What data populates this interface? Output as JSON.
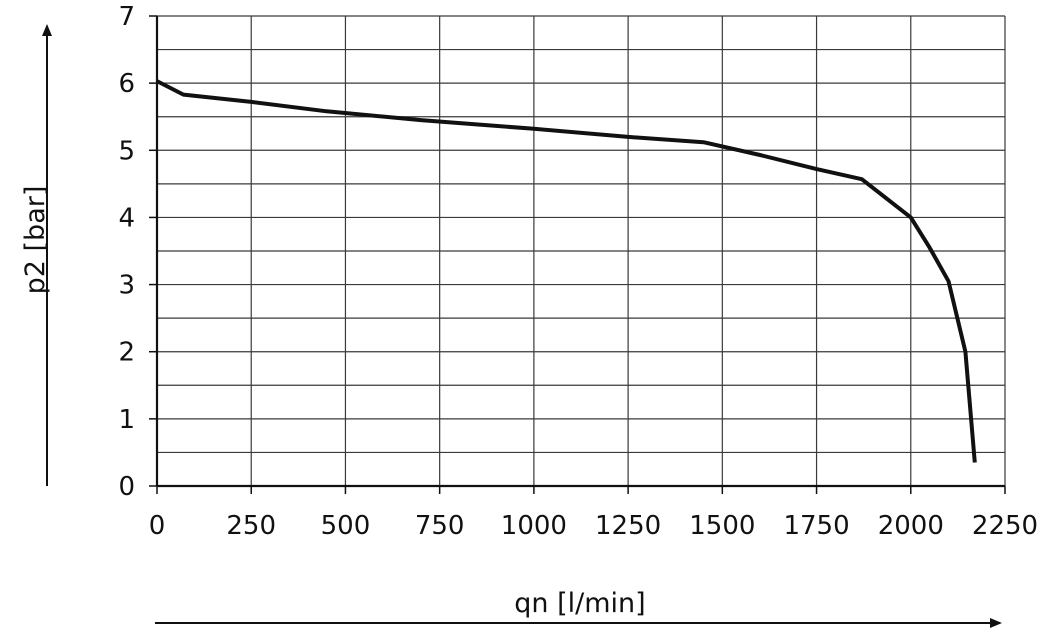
{
  "chart_data": {
    "type": "line",
    "title": "",
    "xlabel": "qn [l/min]",
    "ylabel": "p2 [bar]",
    "xlim": [
      0,
      2250
    ],
    "ylim": [
      0,
      7
    ],
    "x_ticks": [
      0,
      250,
      500,
      750,
      1000,
      1250,
      1500,
      1750,
      2000,
      2250
    ],
    "y_ticks": [
      0,
      1,
      2,
      3,
      4,
      5,
      6,
      7
    ],
    "x_minor_grid_step": 250,
    "y_minor_grid_step": 0.5,
    "grid": true,
    "legend": "none",
    "line_color": "#111111",
    "series": [
      {
        "x": [
          0,
          70,
          250,
          450,
          700,
          1000,
          1250,
          1450,
          1600,
          1750,
          1870,
          1950,
          2000,
          2050,
          2100,
          2145,
          2170
        ],
        "y": [
          6.03,
          5.83,
          5.72,
          5.58,
          5.45,
          5.32,
          5.2,
          5.12,
          4.93,
          4.72,
          4.57,
          4.22,
          4.0,
          3.55,
          3.05,
          2.0,
          0.35
        ]
      }
    ]
  }
}
